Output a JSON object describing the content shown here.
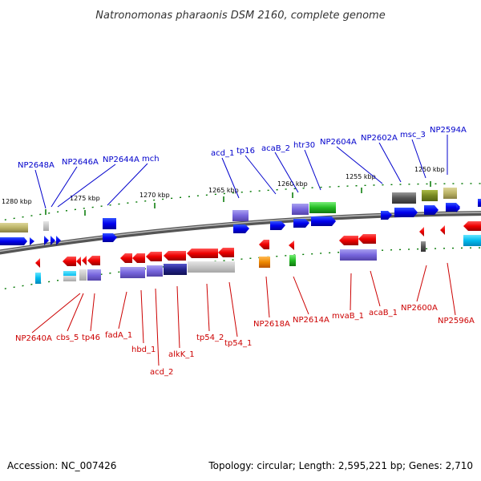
{
  "title": "Natronomonas pharaonis DSM 2160, complete genome",
  "footer": {
    "accession": "Accession: NC_007426",
    "summary": "Topology: circular; Length: 2,595,221 bp; Genes: 2,710"
  },
  "ticks": [
    "1280 kbp",
    "1275 kbp",
    "1270 kbp",
    "1265 kbp",
    "1260 kbp",
    "1255 kbp",
    "1250 kbp"
  ],
  "labels_top": [
    "NP2648A",
    "NP2646A",
    "NP2644A",
    "mch",
    "acd_1",
    "tp16",
    "acaB_2",
    "htr30",
    "NP2604A",
    "NP2602A",
    "msc_3",
    "NP2594A"
  ],
  "labels_bottom": [
    "NP2640A",
    "cbs_5",
    "tp46",
    "fadA_1",
    "hbd_1",
    "acd_2",
    "alkK_1",
    "tp54_2",
    "tp54_1",
    "NP2618A",
    "NP2614A",
    "mvaB_1",
    "acaB_1",
    "NP2600A",
    "NP2596A"
  ],
  "colors": {
    "forward_strand": "#0000ee",
    "reverse_strand": "#ee0000",
    "forward_label": "#0000cc",
    "reverse_label": "#cc0000",
    "backbone": "#777777",
    "tick_marks": "#007700"
  }
}
